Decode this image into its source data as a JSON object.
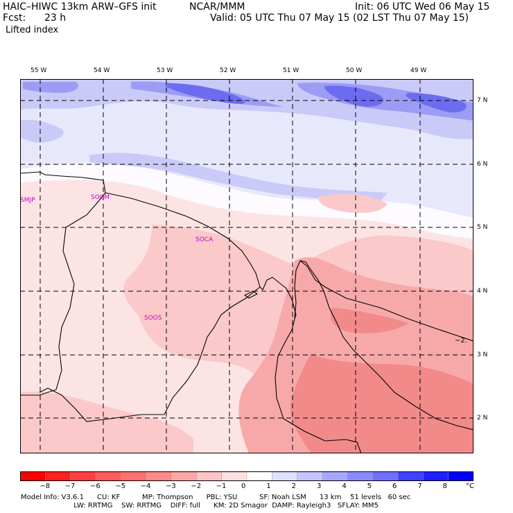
{
  "header": {
    "model": "HAIC–HIWC 13km ARW–GFS init",
    "center": "NCAR/MMM",
    "init": "Init: 06 UTC Wed 06 May 15",
    "fcst_label": "Fcst:",
    "fcst_value": "23 h",
    "valid": "Valid: 05 UTC Thu 07 May 15 (02 LST Thu 07 May 15)",
    "field": "Lifted index"
  },
  "map": {
    "lon_labels": [
      "55 W",
      "54 W",
      "53 W",
      "52 W",
      "51 W",
      "50 W",
      "49 W"
    ],
    "lat_labels": [
      "7 N",
      "6 N",
      "5 N",
      "4 N",
      "3 N",
      "2 N"
    ],
    "stations": [
      "SMJP",
      "SOCM",
      "SOCA",
      "SOOS"
    ],
    "contour_label": "−2.",
    "colors": {
      "blue_strong": "#6c6cf0",
      "blue_mid": "#9c9cf5",
      "blue_light": "#cacaf9",
      "blue_pale": "#e8e8fc",
      "red_pale": "#fde4e4",
      "red_light": "#fbc9c9",
      "red_mid": "#f7a9a9",
      "red_strong": "#f28a8a"
    }
  },
  "colorbar": {
    "labels": [
      "−8",
      "−7",
      "−6",
      "−5",
      "−4",
      "−3",
      "−2",
      "−1",
      "0",
      "1",
      "2",
      "3",
      "4",
      "5",
      "6",
      "7",
      "8"
    ],
    "unit": "°C",
    "colors": [
      "#ff0000",
      "#ff2020",
      "#ff4040",
      "#ff5a5a",
      "#ff7070",
      "#ff8a8a",
      "#ffa6a6",
      "#ffc4c4",
      "#ffe0e0",
      "#ffffff",
      "#e0e0ff",
      "#c4c4ff",
      "#a6a6ff",
      "#8a8aff",
      "#7070ff",
      "#4040ff",
      "#2020ff",
      "#0000ff"
    ]
  },
  "footer": {
    "line1": "Model Info: V3.6.1      CU: KF          MP: Thompson      PBL: YSU          SF: Noah LSM      13 km    51 levels   60 sec",
    "line2": "                        LW: RRTMG    SW: RRTMG    DIFF: full      KM: 2D Smagor  DAMP: Rayleigh3   SFLAY: MM5"
  }
}
